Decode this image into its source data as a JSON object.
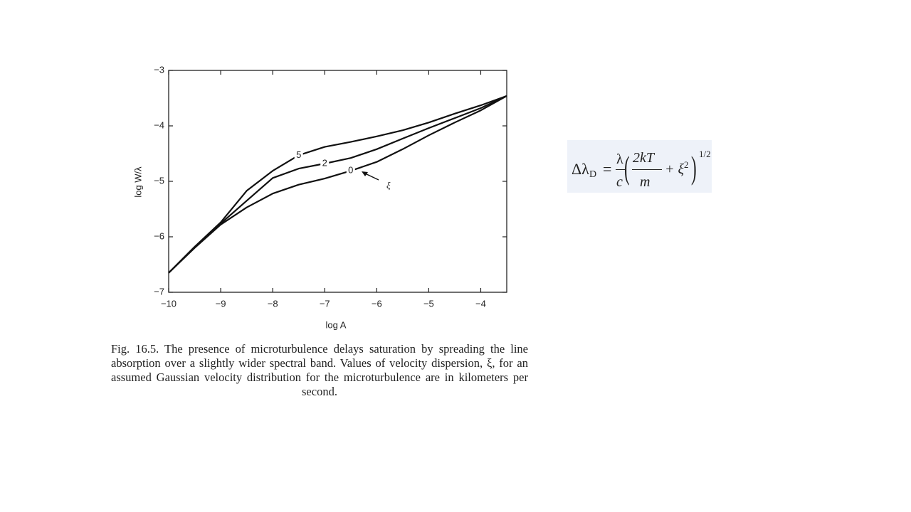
{
  "chart_data": {
    "type": "line",
    "xlabel": "log A",
    "ylabel": "log W/λ",
    "x": [
      -10,
      -9.5,
      -9,
      -8.5,
      -8,
      -7.5,
      -7,
      -6.5,
      -6,
      -5.5,
      -5,
      -4.5,
      -4,
      -3.5
    ],
    "series": [
      {
        "name": "5",
        "color": "#111111",
        "values": [
          -6.65,
          -6.18,
          -5.74,
          -5.17,
          -4.81,
          -4.53,
          -4.38,
          -4.29,
          -4.19,
          -4.08,
          -3.94,
          -3.78,
          -3.63,
          -3.46
        ]
      },
      {
        "name": "2",
        "color": "#111111",
        "values": [
          -6.65,
          -6.19,
          -5.76,
          -5.35,
          -4.94,
          -4.77,
          -4.68,
          -4.58,
          -4.42,
          -4.23,
          -4.04,
          -3.86,
          -3.68,
          -3.46
        ]
      },
      {
        "name": "0",
        "color": "#111111",
        "values": [
          -6.65,
          -6.2,
          -5.78,
          -5.47,
          -5.22,
          -5.06,
          -4.95,
          -4.81,
          -4.65,
          -4.42,
          -4.17,
          -3.94,
          -3.72,
          -3.46
        ]
      }
    ],
    "annotations": [
      "ξ"
    ],
    "xlim": [
      -10,
      -3.5
    ],
    "xticks": [
      {
        "value": -10,
        "label": "−10"
      },
      {
        "value": -9,
        "label": "−9"
      },
      {
        "value": -8,
        "label": "−8"
      },
      {
        "value": -7,
        "label": "−7"
      },
      {
        "value": -6,
        "label": "−6"
      },
      {
        "value": -5,
        "label": "−5"
      },
      {
        "value": -4,
        "label": "−4"
      }
    ],
    "ylim": [
      -7,
      -3
    ],
    "yticks": [
      {
        "value": -7,
        "label": "−7"
      },
      {
        "value": -6,
        "label": "−6"
      },
      {
        "value": -5,
        "label": "−5"
      },
      {
        "value": -4,
        "label": "−4"
      },
      {
        "value": -3,
        "label": "−3"
      }
    ],
    "grid": false
  },
  "caption": "Fig. 16.5.   The presence of microturbulence delays saturation by spreading the line absorption over a slightly wider spectral band. Values of velocity dispersion, ξ, for an assumed Gaussian velocity distribution for the microturbulence are in kilometers per second.",
  "formula": {
    "lhs": "Δλ",
    "lhs_sub": "D",
    "equals": "=",
    "numerator": "λ",
    "denominator": "c",
    "inner_numerator": "2kT",
    "inner_denominator": "m",
    "plus": "+ ξ",
    "power": "2",
    "exponent": "1/2"
  }
}
